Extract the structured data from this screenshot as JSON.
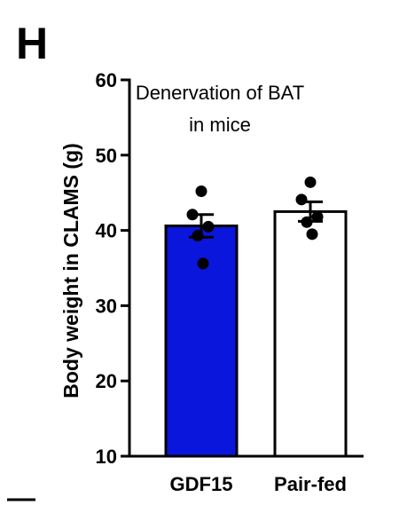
{
  "panel_letter": "H",
  "chart_data": {
    "type": "bar",
    "title": "Denervation of BAT in mice",
    "title_lines": [
      "Denervation of BAT",
      "in mice"
    ],
    "ylabel": "Body weight in CLAMS (g)",
    "xlabel": "",
    "ylim": [
      10,
      60
    ],
    "yticks": [
      10,
      20,
      30,
      40,
      50,
      60
    ],
    "categories": [
      "GDF15",
      "Pair-fed"
    ],
    "values": [
      40.6,
      42.5
    ],
    "errors": [
      1.5,
      1.3
    ],
    "points": [
      [
        45.2,
        42.1,
        40.5,
        39.3,
        35.6
      ],
      [
        46.4,
        44.1,
        41.8,
        41.1,
        39.5
      ]
    ],
    "bar_fills": [
      "#0a16dc",
      "#ffffff"
    ],
    "grid": false,
    "legend": "none"
  }
}
